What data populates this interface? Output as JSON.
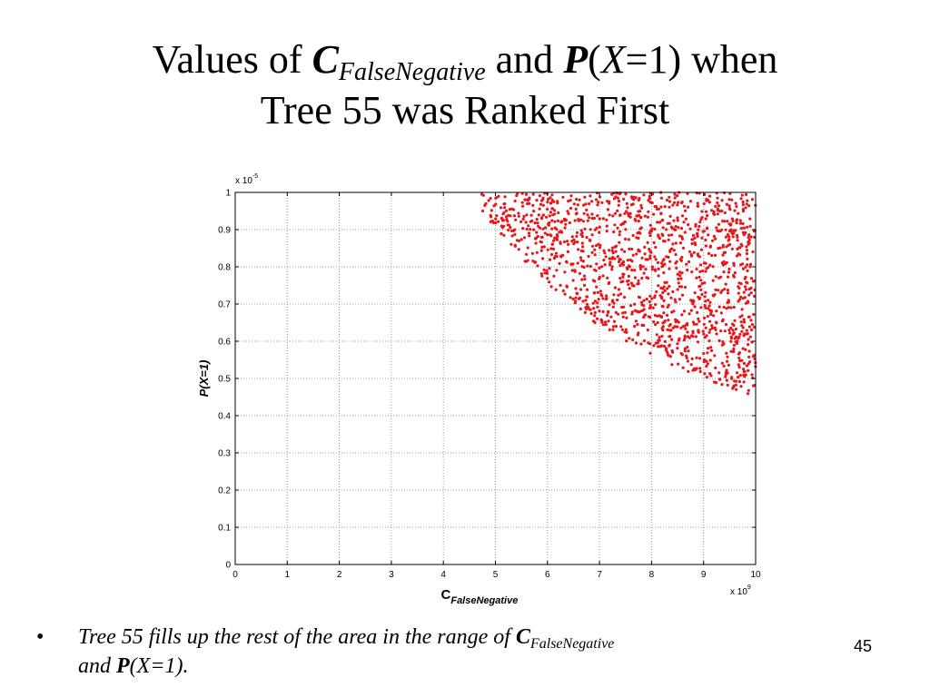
{
  "slide": {
    "title": {
      "pre": "Values of ",
      "c_var": "C",
      "c_sub": "FalseNegative",
      "mid": " and ",
      "p_var": "P",
      "paren_open": "(",
      "x_var": "X",
      "eq": "=1) when",
      "line2": "Tree 55 was Ranked First"
    },
    "bullet": {
      "symbol": "•",
      "pre": "Tree 55 fills up the rest of the area in the range of ",
      "c_var": "C",
      "c_sub": "FalseNegative",
      "and": "and ",
      "p_var": "P",
      "paren_open": "(",
      "x_var": "X",
      "eq": "=1)."
    },
    "page_number": "45"
  },
  "chart_data": {
    "type": "scatter",
    "xlabel_main": "C",
    "xlabel_sub": "FalseNegative",
    "ylabel": "P(X=1)",
    "x_multiplier": "x 10",
    "x_multiplier_exp": "9",
    "y_multiplier": "x 10",
    "y_multiplier_exp": "-5",
    "xlim": [
      0,
      10
    ],
    "ylim": [
      0,
      1
    ],
    "xticks": [
      "0",
      "1",
      "2",
      "3",
      "4",
      "5",
      "6",
      "7",
      "8",
      "9",
      "10"
    ],
    "yticks": [
      "0",
      "0.1",
      "0.2",
      "0.3",
      "0.4",
      "0.5",
      "0.6",
      "0.7",
      "0.8",
      "0.9",
      "1"
    ],
    "grid": true,
    "marker_color": "#e8161b",
    "boundary_curve": [
      [
        4.5,
        1.0
      ],
      [
        5.0,
        0.9
      ],
      [
        6.0,
        0.75
      ],
      [
        7.0,
        0.64
      ],
      [
        8.0,
        0.56
      ],
      [
        9.0,
        0.5
      ],
      [
        10.0,
        0.45
      ]
    ],
    "point_count": 1400,
    "note": "Points densely and uniformly fill the region above the boundary curve up to x=10, y=1"
  }
}
